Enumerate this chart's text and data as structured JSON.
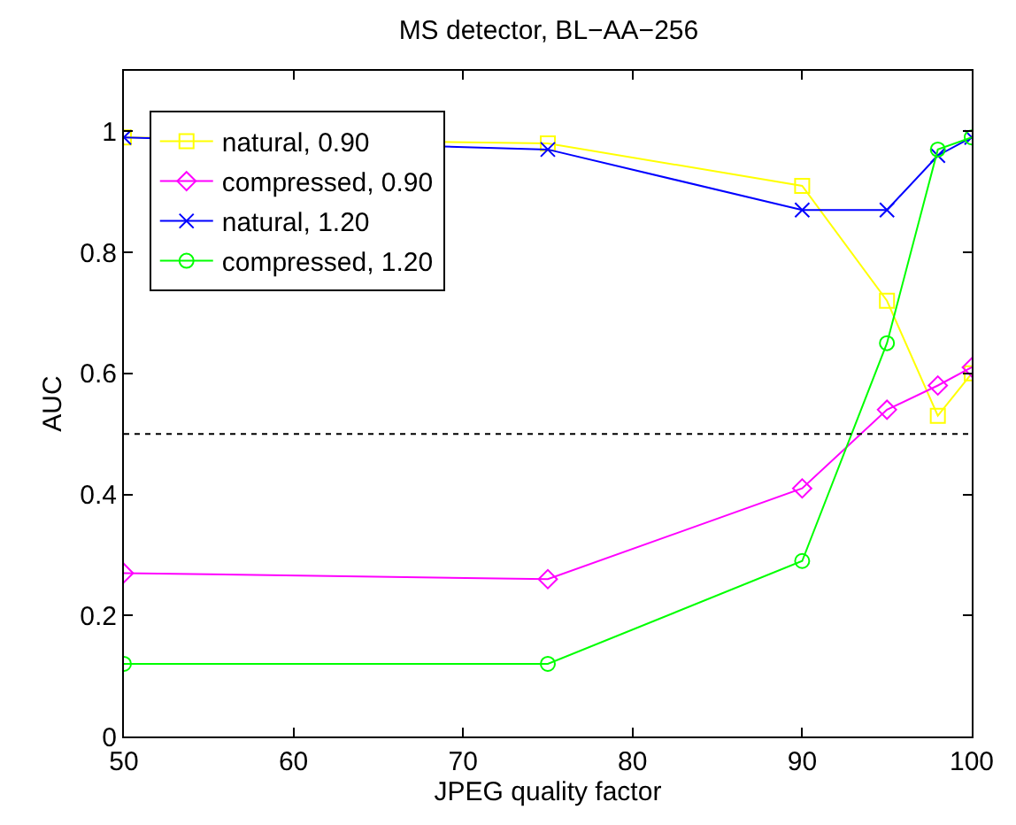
{
  "chart_data": {
    "type": "line",
    "title": "MS detector, BL−AA−256",
    "xlabel": "JPEG quality factor",
    "ylabel": "AUC",
    "x": [
      50,
      75,
      90,
      95,
      98,
      100
    ],
    "series": [
      {
        "name": "natural, 0.90",
        "color": "#ffff00",
        "marker": "square",
        "values": [
          0.99,
          0.98,
          0.91,
          0.72,
          0.53,
          0.6
        ]
      },
      {
        "name": "compressed, 0.90",
        "color": "#ff00ff",
        "marker": "diamond",
        "values": [
          0.27,
          0.26,
          0.41,
          0.54,
          0.58,
          0.61
        ]
      },
      {
        "name": "natural, 1.20",
        "color": "#0000ff",
        "marker": "cross",
        "values": [
          0.99,
          0.97,
          0.87,
          0.87,
          0.96,
          0.99
        ]
      },
      {
        "name": "compressed, 1.20",
        "color": "#00ff00",
        "marker": "circle",
        "values": [
          0.12,
          0.12,
          0.29,
          0.65,
          0.97,
          0.99
        ]
      }
    ],
    "xlim": [
      50,
      100
    ],
    "xticks": [
      50,
      60,
      70,
      80,
      90,
      100
    ],
    "ylim": [
      0,
      1.1
    ],
    "yticks": [
      0,
      0.2,
      0.4,
      0.6,
      0.8,
      1
    ],
    "ref_lines": [
      {
        "axis": "y",
        "value": 0.5,
        "color": "#000000",
        "line_style": "dotted"
      }
    ],
    "legend": "top left",
    "line_style": "solid"
  }
}
